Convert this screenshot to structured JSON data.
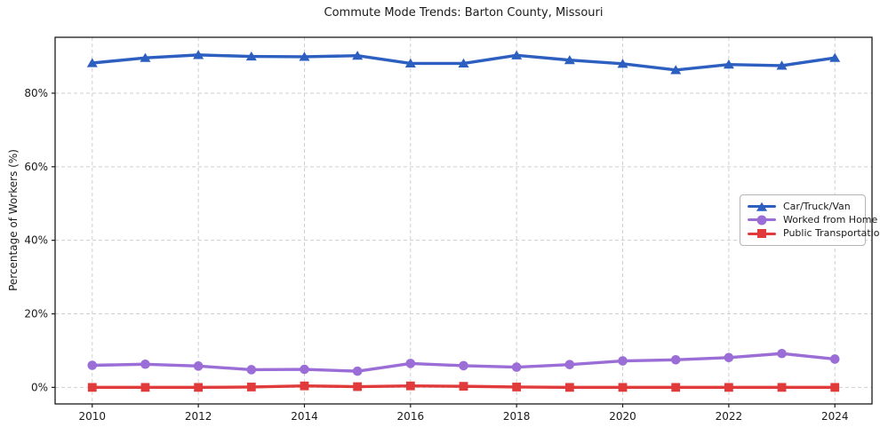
{
  "chart_data": {
    "type": "line",
    "title": "Commute Mode Trends: Barton County, Missouri",
    "xlabel": "",
    "ylabel": "Percentage of Workers (%)",
    "x": [
      2010,
      2011,
      2012,
      2013,
      2014,
      2015,
      2016,
      2017,
      2018,
      2019,
      2020,
      2021,
      2022,
      2023,
      2024
    ],
    "series": [
      {
        "name": "Car/Truck/Van",
        "marker": "triangle",
        "color": "#2d5fc1",
        "values": [
          88.2,
          89.6,
          90.4,
          90.0,
          89.9,
          90.2,
          88.1,
          88.1,
          90.3,
          89.0,
          88.0,
          86.3,
          87.8,
          87.5,
          89.6
        ]
      },
      {
        "name": "Worked from Home",
        "marker": "circle",
        "color": "#9a6dd7",
        "values": [
          6.0,
          6.3,
          5.8,
          4.8,
          4.9,
          4.4,
          6.5,
          5.9,
          5.5,
          6.2,
          7.2,
          7.5,
          8.1,
          9.2,
          7.7
        ]
      },
      {
        "name": "Public Transportation",
        "marker": "square",
        "color": "#e03a3a",
        "values": [
          0.0,
          0.0,
          0.0,
          0.1,
          0.4,
          0.2,
          0.4,
          0.3,
          0.1,
          0.0,
          0.0,
          0.0,
          0.0,
          0.0,
          0.0
        ]
      }
    ],
    "xticks": [
      2010,
      2012,
      2014,
      2016,
      2018,
      2020,
      2022,
      2024
    ],
    "yticks": [
      0,
      20,
      40,
      60,
      80
    ],
    "ytick_suffix": "%",
    "xlim": [
      2009.3,
      2024.7
    ],
    "ylim": [
      -4.5,
      95.2
    ],
    "grid": true,
    "grid_color": "#cfcfcf",
    "axis_color": "#1a1a1a",
    "legend_position": "center-right"
  }
}
